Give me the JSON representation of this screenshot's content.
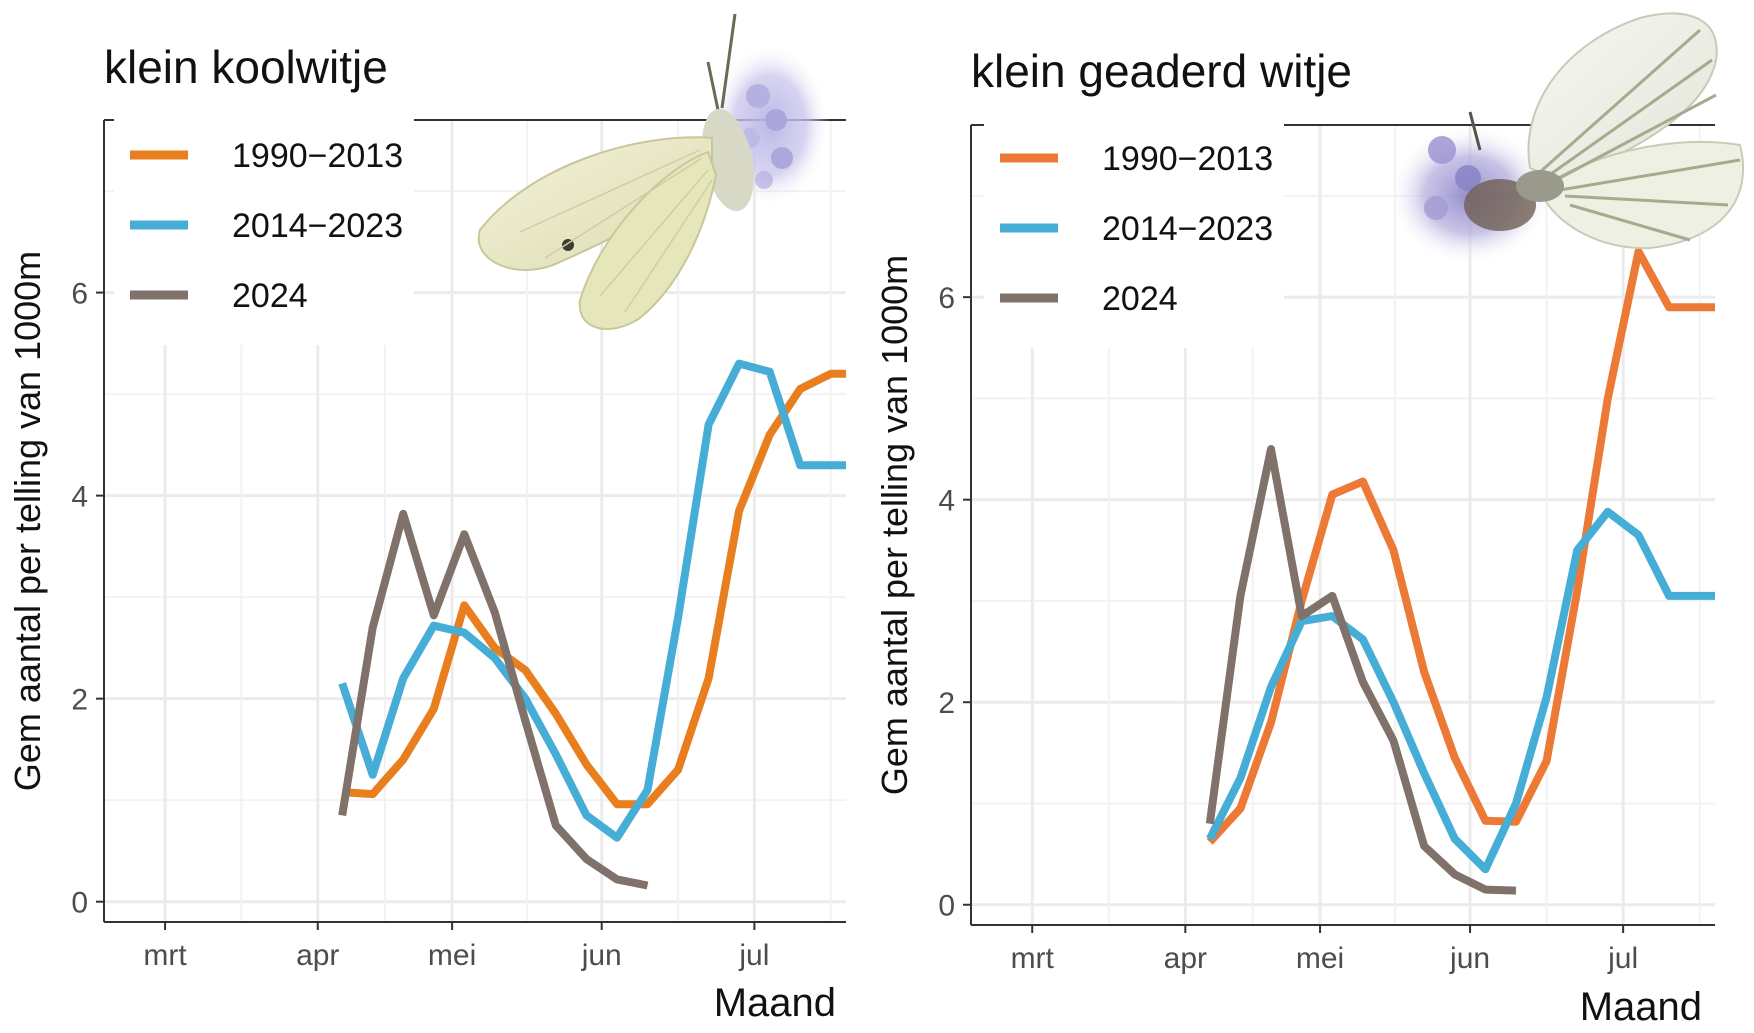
{
  "chart_data": [
    {
      "type": "line",
      "title": "klein koolwitje",
      "xlabel": "Maand",
      "ylabel": "Gem aantal per telling van 1000m",
      "x_unit": "week",
      "x_range": [
        6.2,
        30.5
      ],
      "xticks": [
        {
          "value": 8.2,
          "label": "mrt"
        },
        {
          "value": 13.2,
          "label": "apr"
        },
        {
          "value": 17.6,
          "label": "mei"
        },
        {
          "value": 22.5,
          "label": "jun"
        },
        {
          "value": 27.5,
          "label": "jul"
        }
      ],
      "ylim": [
        -0.2,
        7.7
      ],
      "yticks": [
        0,
        2,
        4,
        6
      ],
      "legend_position": "top-left",
      "grid": true,
      "series": [
        {
          "name": "1990−2013",
          "color": "#E87E1E",
          "x": [
            14,
            15,
            16,
            17,
            18,
            19,
            20,
            21,
            22,
            23,
            24,
            25,
            26,
            27,
            28,
            29,
            30,
            30.5
          ],
          "y": [
            1.08,
            1.06,
            1.4,
            1.9,
            2.92,
            2.5,
            2.28,
            1.85,
            1.35,
            0.96,
            0.96,
            1.3,
            2.2,
            3.85,
            4.6,
            5.05,
            5.2,
            5.2
          ]
        },
        {
          "name": "2014−2023",
          "color": "#45ADD6",
          "x": [
            14,
            15,
            16,
            17,
            18,
            19,
            20,
            21,
            22,
            23,
            24,
            25,
            26,
            27,
            28,
            29,
            30,
            30.5
          ],
          "y": [
            2.15,
            1.25,
            2.2,
            2.72,
            2.65,
            2.4,
            2.0,
            1.45,
            0.85,
            0.63,
            1.1,
            2.8,
            4.7,
            5.3,
            5.22,
            4.3,
            4.3,
            4.3
          ]
        },
        {
          "name": "2024",
          "color": "#80726A",
          "x": [
            14,
            15,
            16,
            17,
            18,
            19,
            20,
            21,
            22,
            23,
            24
          ],
          "y": [
            0.85,
            2.7,
            3.82,
            2.82,
            3.62,
            2.85,
            1.78,
            0.75,
            0.42,
            0.22,
            0.16
          ]
        }
      ]
    },
    {
      "type": "line",
      "title": "klein geaderd witje",
      "xlabel": "Maand",
      "ylabel": "Gem aantal per telling van 1000m",
      "x_unit": "week",
      "x_range": [
        6.2,
        30.5
      ],
      "xticks": [
        {
          "value": 8.2,
          "label": "mrt"
        },
        {
          "value": 13.2,
          "label": "apr"
        },
        {
          "value": 17.6,
          "label": "mei"
        },
        {
          "value": 22.5,
          "label": "jun"
        },
        {
          "value": 27.5,
          "label": "jul"
        }
      ],
      "ylim": [
        -0.2,
        7.7
      ],
      "yticks": [
        0,
        2,
        4,
        6
      ],
      "legend_position": "top-left",
      "grid": true,
      "series": [
        {
          "name": "1990−2013",
          "color": "#EC7A36",
          "x": [
            14,
            15,
            16,
            17,
            18,
            19,
            20,
            21,
            22,
            23,
            24,
            25,
            26,
            27,
            28,
            29,
            30,
            30.5
          ],
          "y": [
            0.62,
            0.95,
            1.8,
            3.0,
            4.05,
            4.18,
            3.5,
            2.3,
            1.45,
            0.83,
            0.82,
            1.42,
            3.1,
            5.0,
            6.45,
            5.9,
            5.9,
            5.9
          ]
        },
        {
          "name": "2014−2023",
          "color": "#45ADD6",
          "x": [
            14,
            15,
            16,
            17,
            18,
            19,
            20,
            21,
            22,
            23,
            24,
            25,
            26,
            27,
            28,
            29,
            30,
            30.5
          ],
          "y": [
            0.65,
            1.25,
            2.15,
            2.8,
            2.85,
            2.62,
            2.0,
            1.3,
            0.65,
            0.35,
            1.0,
            2.05,
            3.5,
            3.88,
            3.65,
            3.05,
            3.05,
            3.05
          ]
        },
        {
          "name": "2024",
          "color": "#80726A",
          "x": [
            14,
            15,
            16,
            17,
            18,
            19,
            20,
            21,
            22,
            23,
            24
          ],
          "y": [
            0.8,
            3.05,
            4.5,
            2.85,
            3.05,
            2.2,
            1.62,
            0.58,
            0.3,
            0.15,
            0.14
          ]
        }
      ]
    }
  ],
  "illustrations": [
    {
      "name": "small-white-butterfly-photo"
    },
    {
      "name": "green-veined-white-butterfly-photo"
    }
  ]
}
